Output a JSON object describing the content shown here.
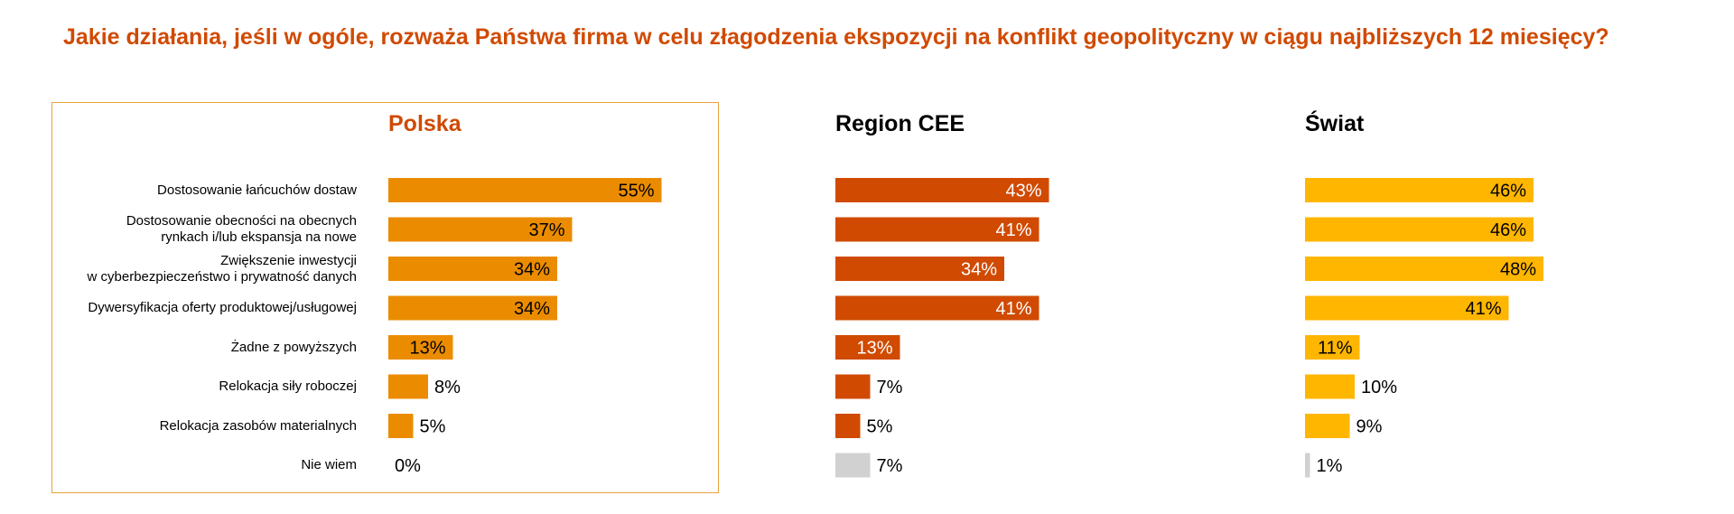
{
  "title": "Jakie działania, jeśli w ogóle, rozważa Państwa firma w celu złagodzenia ekspozycji na konflikt geopolityczny w ciągu najbliższych 12 miesięcy?",
  "chart_data": {
    "type": "bar",
    "orientation": "horizontal",
    "categories": [
      "Dostosowanie łańcuchów dostaw",
      "Dostosowanie obecności na obecnych\nrynkach i/lub ekspansja na nowe",
      "Zwiększenie inwestycji\nw cyberbezpieczeństwo i prywatność danych",
      "Dywersyfikacja oferty produktowej/usługowej",
      "Żadne z powyższych",
      "Relokacja siły roboczej",
      "Relokacja zasobów materialnych",
      "Nie wiem"
    ],
    "series": [
      {
        "name": "Polska",
        "values": [
          55,
          37,
          34,
          34,
          13,
          8,
          5,
          0
        ],
        "labels": [
          "55%",
          "37%",
          "34%",
          "34%",
          "13%",
          "8%",
          "5%",
          "0%"
        ],
        "color": "#eb8c00",
        "title_color": "#d04a02"
      },
      {
        "name": "Region CEE",
        "values": [
          43,
          41,
          34,
          41,
          13,
          7,
          5,
          7
        ],
        "labels": [
          "43%",
          "41%",
          "34%",
          "41%",
          "13%",
          "7%",
          "5%",
          "7%"
        ],
        "color": "#d04a02",
        "title_color": "#000000"
      },
      {
        "name": "Świat",
        "values": [
          46,
          46,
          48,
          41,
          11,
          10,
          9,
          1
        ],
        "labels": [
          "46%",
          "46%",
          "48%",
          "41%",
          "11%",
          "10%",
          "9%",
          "1%"
        ],
        "color": "#ffb600",
        "title_color": "#000000"
      }
    ],
    "na_color": "#d1d1d1",
    "highlighted_panel": "Polska"
  }
}
